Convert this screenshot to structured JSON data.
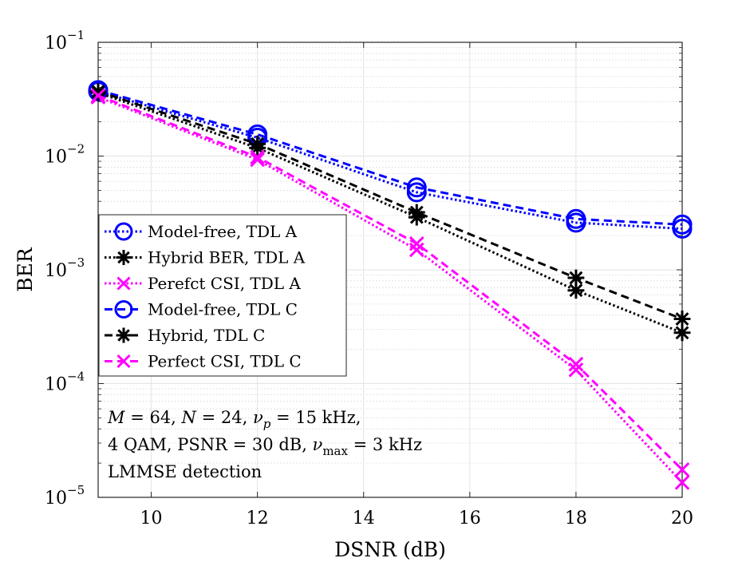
{
  "chart_data": {
    "type": "line",
    "xlabel": "DSNR (dB)",
    "ylabel": "BER",
    "xlim": [
      9,
      20
    ],
    "ylim": [
      1e-05,
      0.1
    ],
    "yscale": "log",
    "x_ticks": [
      10,
      12,
      14,
      16,
      18,
      20
    ],
    "y_ticks": [
      {
        "value": 1e-05,
        "base": "10",
        "exp": "−5"
      },
      {
        "value": 0.0001,
        "base": "10",
        "exp": "−4"
      },
      {
        "value": 0.001,
        "base": "10",
        "exp": "−3"
      },
      {
        "value": 0.01,
        "base": "10",
        "exp": "−2"
      },
      {
        "value": 0.1,
        "base": "10",
        "exp": "−1"
      }
    ],
    "grid": true,
    "minor_grid": true,
    "legend_position": "middle-left",
    "series": [
      {
        "name": "Model-free, TDL A",
        "color": "#0000ff",
        "dash": "dotted",
        "marker": "circle",
        "x": [
          9,
          12,
          15,
          18,
          20
        ],
        "y": [
          0.037,
          0.0145,
          0.0048,
          0.0026,
          0.0023
        ]
      },
      {
        "name": "Hybrid BER, TDL A",
        "color": "#000000",
        "dash": "dotted",
        "marker": "asterisk",
        "x": [
          9,
          12,
          15,
          18,
          20
        ],
        "y": [
          0.036,
          0.0118,
          0.0029,
          0.00066,
          0.00028
        ]
      },
      {
        "name": "Perefct CSI, TDL A",
        "color": "#ff00ff",
        "dash": "dotted",
        "marker": "x",
        "x": [
          9,
          12,
          15,
          18,
          20
        ],
        "y": [
          0.033,
          0.0093,
          0.0015,
          0.000132,
          1.35e-05
        ]
      },
      {
        "name": "Model-free, TDL C",
        "color": "#0000ff",
        "dash": "dashed",
        "marker": "circle",
        "x": [
          9,
          12,
          15,
          18,
          20
        ],
        "y": [
          0.038,
          0.0155,
          0.0053,
          0.0028,
          0.0025
        ]
      },
      {
        "name": "Hybrid, TDL C",
        "color": "#000000",
        "dash": "dashed",
        "marker": "asterisk",
        "x": [
          9,
          12,
          15,
          18,
          20
        ],
        "y": [
          0.037,
          0.0128,
          0.0032,
          0.00085,
          0.00037
        ]
      },
      {
        "name": "Perfect CSI, TDL C",
        "color": "#ff00ff",
        "dash": "dashed",
        "marker": "x",
        "x": [
          9,
          12,
          15,
          18,
          20
        ],
        "y": [
          0.034,
          0.0098,
          0.0017,
          0.000148,
          1.75e-05
        ]
      }
    ],
    "annotation": [
      "M = 64, N = 24, νp = 15 kHz,",
      "4 QAM, PSNR = 30 dB, νmax = 3 kHz",
      "LMMSE detection"
    ]
  }
}
